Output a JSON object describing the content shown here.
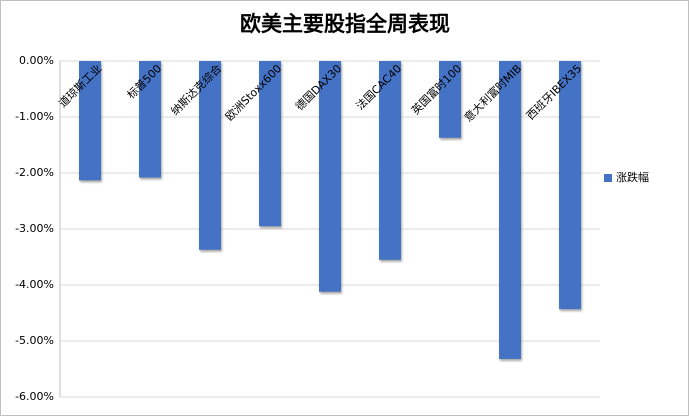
{
  "chart_data": {
    "type": "bar",
    "title": "欧美主要股指全周表现",
    "categories": [
      "道琼斯工业",
      "标普500",
      "纳斯达克综合",
      "欧洲Stoxx600",
      "德国DAX30",
      "法国CAC40",
      "英国富时100",
      "意大利富时MIB",
      "西班牙IBEX35"
    ],
    "series": [
      {
        "name": "涨跌幅",
        "color": "#4472c4",
        "values": [
          -2.13,
          -2.08,
          -3.37,
          -2.95,
          -4.12,
          -3.55,
          -1.37,
          -5.32,
          -4.43
        ]
      }
    ],
    "ylim": [
      -6,
      0
    ],
    "yticks": [
      {
        "value": 0,
        "label": "0.00%"
      },
      {
        "value": -1,
        "label": "-1.00%"
      },
      {
        "value": -2,
        "label": "-2.00%"
      },
      {
        "value": -3,
        "label": "-3.00%"
      },
      {
        "value": -4,
        "label": "-4.00%"
      },
      {
        "value": -5,
        "label": "-5.00%"
      },
      {
        "value": -6,
        "label": "-6.00%"
      }
    ],
    "grid": true,
    "legend": "right"
  }
}
